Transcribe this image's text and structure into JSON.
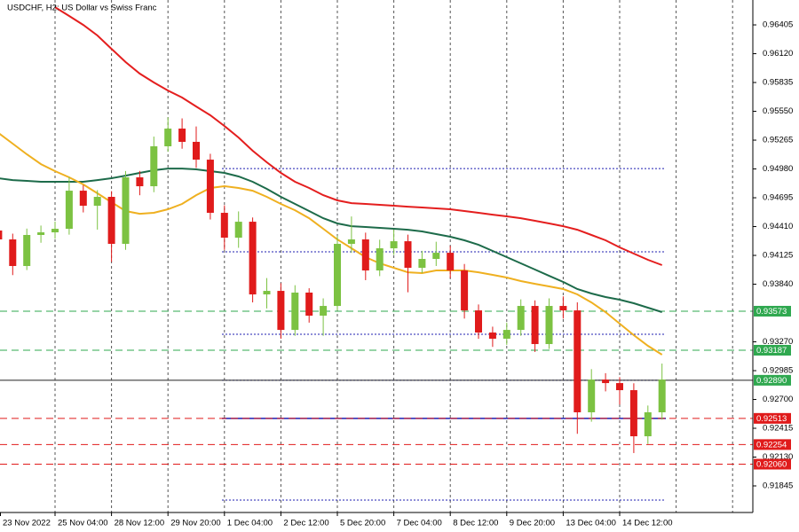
{
  "chart_data": {
    "type": "candlestick",
    "title": "USDCHF, H2: US Dollar vs Swiss Franc",
    "categories": [
      "23 Nov 2022",
      null,
      null,
      null,
      "25 Nov 04:00",
      null,
      null,
      null,
      "28 Nov 12:00",
      null,
      null,
      null,
      "29 Nov 20:00",
      null,
      null,
      null,
      "1 Dec 04:00",
      null,
      null,
      null,
      "2 Dec 12:00",
      null,
      null,
      null,
      "5 Dec 20:00",
      null,
      null,
      null,
      "7 Dec 04:00",
      null,
      null,
      null,
      "8 Dec 12:00",
      null,
      null,
      null,
      "9 Dec 20:00",
      null,
      null,
      null,
      "13 Dec 04:00",
      null,
      null,
      null,
      "14 Dec 12:00",
      null,
      null,
      null
    ],
    "open": [
      0.94371,
      0.94283,
      0.9402,
      0.94327,
      0.94353,
      0.94388,
      0.94765,
      0.94616,
      0.94704,
      0.94239,
      0.94897,
      0.94809,
      0.95204,
      0.95379,
      0.95248,
      0.95072,
      0.94546,
      0.943,
      0.94458,
      0.93739,
      0.93774,
      0.93388,
      0.93757,
      0.93529,
      0.93625,
      0.94239,
      0.94283,
      0.93976,
      0.94195,
      0.94265,
      0.94002,
      0.9409,
      0.94151,
      0.93976,
      0.93581,
      0.93362,
      0.93301,
      0.93388,
      0.93625,
      0.93248,
      0.93625,
      0.93581,
      0.92573,
      0.92897,
      0.92862,
      0.92792,
      0.92336,
      0.92573
    ],
    "high": [
      0.9443,
      0.9434,
      0.9439,
      0.9442,
      0.9446,
      0.949,
      0.9482,
      0.9477,
      0.9476,
      0.9496,
      0.9496,
      0.953,
      0.9549,
      0.9548,
      0.954,
      0.9513,
      0.9462,
      0.9456,
      0.945,
      0.939,
      0.9385,
      0.9383,
      0.938,
      0.937,
      0.9432,
      0.9451,
      0.9435,
      0.9428,
      0.9438,
      0.9433,
      0.9417,
      0.9426,
      0.9422,
      0.9404,
      0.9364,
      0.9342,
      0.9346,
      0.9369,
      0.9368,
      0.937,
      0.9372,
      0.9366,
      0.93,
      0.9296,
      0.9292,
      0.9286,
      0.9264,
      0.93055
    ],
    "low": [
      0.9422,
      0.9393,
      0.9398,
      0.9425,
      0.9429,
      0.9433,
      0.9455,
      0.9438,
      0.9406,
      0.9418,
      0.9472,
      0.9475,
      0.9515,
      0.9518,
      0.9499,
      0.9448,
      0.9418,
      0.942,
      0.9366,
      0.936,
      0.933,
      0.9333,
      0.9346,
      0.9333,
      0.9358,
      0.9415,
      0.9388,
      0.9392,
      0.9413,
      0.9376,
      0.9395,
      0.9402,
      0.939,
      0.935,
      0.933,
      0.9322,
      0.9324,
      0.9333,
      0.9317,
      0.932,
      0.935,
      0.9236,
      0.9248,
      0.9278,
      0.9265,
      0.9217,
      0.9226,
      0.925
    ],
    "close": [
      0.94283,
      0.9402,
      0.94327,
      0.94353,
      0.94388,
      0.94765,
      0.94616,
      0.94704,
      0.94239,
      0.94897,
      0.94809,
      0.95204,
      0.95379,
      0.95248,
      0.95072,
      0.94546,
      0.943,
      0.94458,
      0.93739,
      0.93774,
      0.93388,
      0.93757,
      0.93529,
      0.93625,
      0.94239,
      0.94283,
      0.93976,
      0.94195,
      0.94265,
      0.94002,
      0.9409,
      0.94151,
      0.93976,
      0.93581,
      0.93362,
      0.93301,
      0.93388,
      0.93625,
      0.93248,
      0.93625,
      0.93581,
      0.92573,
      0.92897,
      0.92862,
      0.92792,
      0.92336,
      0.92573,
      0.92897
    ],
    "up_color": "#7cc242",
    "down_color": "#e01b1b",
    "lines": [
      {
        "color": "#e41e1e",
        "values": [
          null,
          null,
          null,
          null,
          0.9658,
          0.96493,
          0.96405,
          0.963,
          0.96168,
          0.96037,
          0.95923,
          0.95835,
          0.95756,
          0.95686,
          0.95598,
          0.95511,
          0.95405,
          0.95291,
          0.9516,
          0.95046,
          0.94941,
          0.94853,
          0.94792,
          0.94721,
          0.94669,
          0.94642,
          0.94634,
          0.94625,
          0.94616,
          0.94607,
          0.94599,
          0.9459,
          0.94581,
          0.94564,
          0.94546,
          0.94528,
          0.94511,
          0.94493,
          0.94467,
          0.94441,
          0.94414,
          0.94379,
          0.94327,
          0.94274,
          0.94204,
          0.94143,
          0.94081,
          0.94029
        ]
      },
      {
        "color": "#1d6b4a",
        "values": [
          0.94888,
          0.9487,
          0.94862,
          0.94853,
          0.94853,
          0.94853,
          0.94853,
          0.9487,
          0.94888,
          0.94914,
          0.94941,
          0.94967,
          0.94984,
          0.94984,
          0.94976,
          0.94958,
          0.94941,
          0.94906,
          0.94853,
          0.94783,
          0.94704,
          0.94634,
          0.94564,
          0.94493,
          0.94441,
          0.94414,
          0.94406,
          0.94397,
          0.94388,
          0.94379,
          0.94362,
          0.94336,
          0.94309,
          0.94274,
          0.9423,
          0.94169,
          0.94108,
          0.94046,
          0.93985,
          0.93923,
          0.93862,
          0.93792,
          0.93748,
          0.93713,
          0.93687,
          0.93652,
          0.93608,
          0.93564
        ]
      },
      {
        "color": "#efb020",
        "values": [
          0.95335,
          0.9523,
          0.95125,
          0.95028,
          0.94958,
          0.94897,
          0.94827,
          0.94739,
          0.94651,
          0.94564,
          0.94537,
          0.94546,
          0.94581,
          0.94634,
          0.94721,
          0.94792,
          0.94809,
          0.94792,
          0.94765,
          0.94704,
          0.94634,
          0.94572,
          0.94493,
          0.94388,
          0.94283,
          0.94195,
          0.94108,
          0.94046,
          0.94002,
          0.93958,
          0.9395,
          0.93976,
          0.93976,
          0.93976,
          0.93958,
          0.93932,
          0.93906,
          0.93871,
          0.93844,
          0.93818,
          0.93792,
          0.93739,
          0.9366,
          0.93564,
          0.9345,
          0.93336,
          0.93231,
          0.93143
        ]
      }
    ],
    "levels": [
      {
        "value": 0.93573,
        "label": "0.93573",
        "color": "#2fa84f",
        "style": "dashed"
      },
      {
        "value": 0.93187,
        "label": "0.93187",
        "color": "#2fa84f",
        "style": "dashed"
      },
      {
        "value": 0.9289,
        "label": "0.92890",
        "color": "#2fa84f",
        "line_color": "#222222",
        "style": "solid"
      },
      {
        "value": 0.92513,
        "label": "0.92513",
        "color": "#e01b1b",
        "style": "dashed"
      },
      {
        "value": 0.92254,
        "label": "0.92254",
        "color": "#e01b1b",
        "style": "dashed"
      },
      {
        "value": 0.9206,
        "label": "0.92060",
        "color": "#e01b1b",
        "style": "dashed"
      }
    ],
    "dotted_levels": [
      0.94984,
      0.9416,
      0.93345,
      0.9289,
      0.91705
    ],
    "solid_levels": [
      0.92513
    ],
    "object_color": "#1f1fb0",
    "ylim": [
      0.91582,
      0.96651
    ],
    "yticks": [
      0.96405,
      {
        "value": 0.9612,
        "label": "0.96120"
      },
      0.95835,
      {
        "value": 0.9555,
        "label": "0.95550"
      },
      0.95265,
      {
        "value": 0.9498,
        "label": "0.94980"
      },
      0.94695,
      {
        "value": 0.9441,
        "label": "0.94410"
      },
      0.94125,
      {
        "value": 0.9384,
        "label": "0.93840"
      },
      {
        "value": 0.9327,
        "label": "0.93270"
      },
      0.92985,
      {
        "value": 0.927,
        "label": "0.92700"
      },
      0.92415,
      {
        "value": 0.9213,
        "label": "0.92130"
      },
      0.91845
    ],
    "grid": "vertical"
  }
}
